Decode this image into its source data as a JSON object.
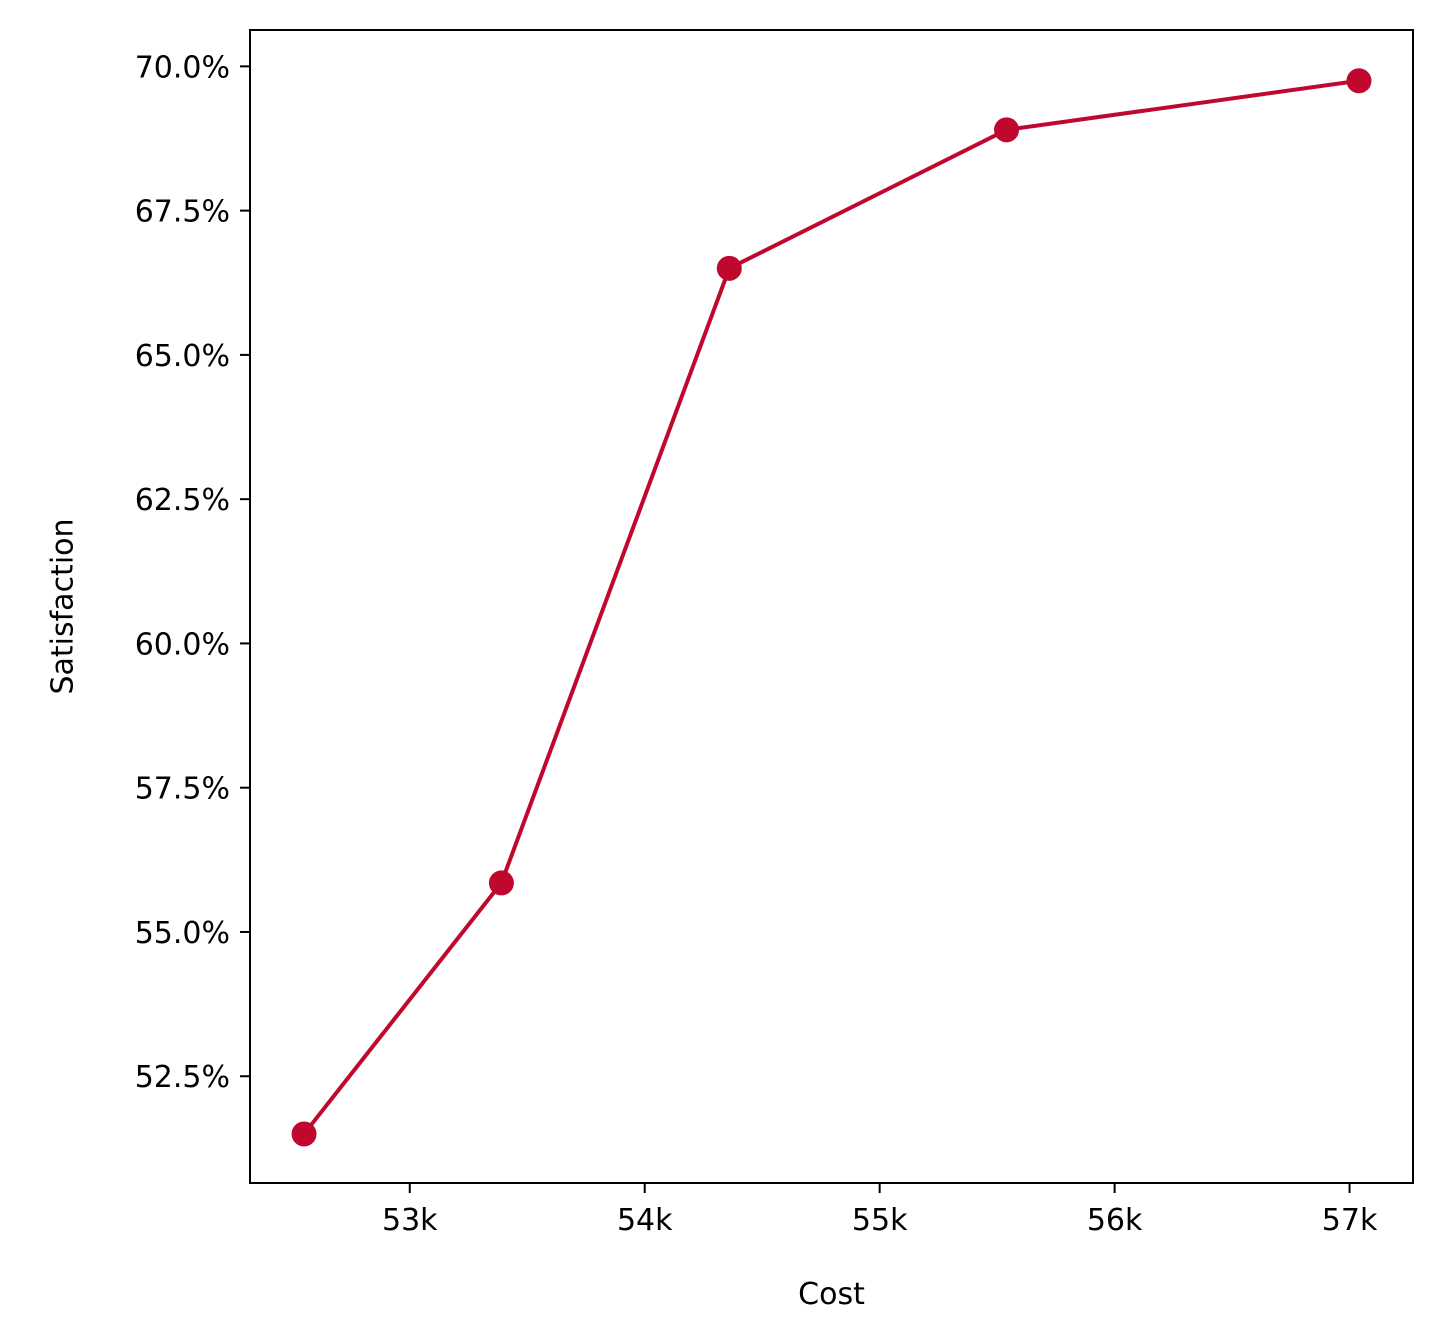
{
  "chart_data": {
    "type": "line",
    "title": "",
    "xlabel": "Cost",
    "ylabel": "Satisfaction",
    "xlim": [
      52320,
      57270
    ],
    "ylim": [
      50.65,
      70.63
    ],
    "x_ticks": [
      53000,
      54000,
      55000,
      56000,
      57000
    ],
    "x_tick_labels": [
      "53k",
      "54k",
      "55k",
      "56k",
      "57k"
    ],
    "y_ticks": [
      52.5,
      55.0,
      57.5,
      60.0,
      62.5,
      65.0,
      67.5,
      70.0
    ],
    "y_tick_labels": [
      "52.5%",
      "55.0%",
      "57.5%",
      "60.0%",
      "62.5%",
      "65.0%",
      "67.5%",
      "70.0%"
    ],
    "grid": false,
    "series": [
      {
        "name": "Satisfaction",
        "color": "#c0082f",
        "marker": "circle",
        "points": [
          {
            "x": 52550,
            "y": 51.5
          },
          {
            "x": 53390,
            "y": 55.85
          },
          {
            "x": 54360,
            "y": 66.5
          },
          {
            "x": 55540,
            "y": 68.9
          },
          {
            "x": 57040,
            "y": 69.75
          }
        ]
      }
    ]
  }
}
